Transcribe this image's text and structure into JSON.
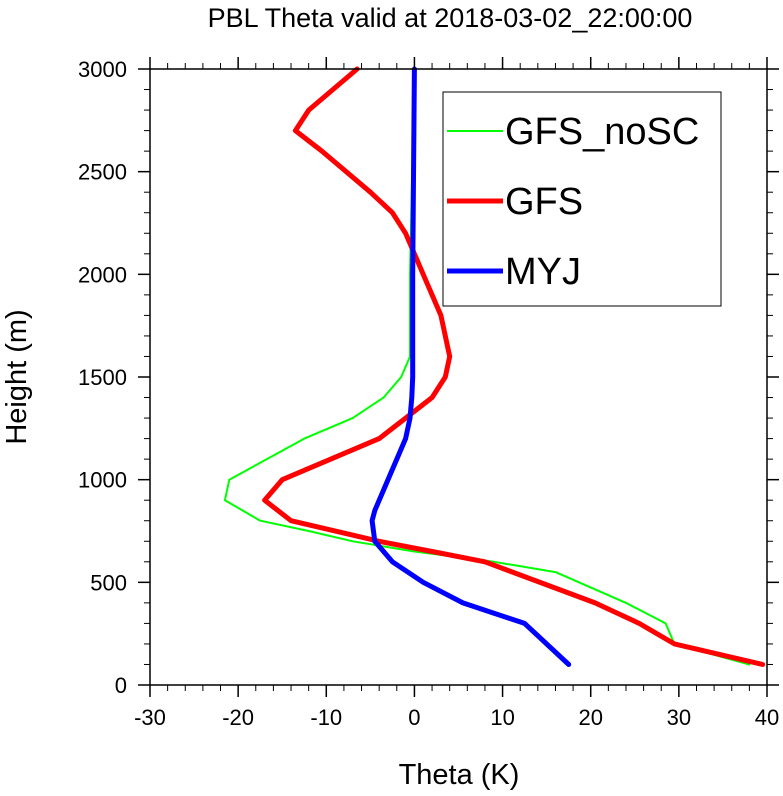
{
  "chart_data": {
    "type": "line",
    "title": "PBL Theta valid at 2018-03-02_22:00:00",
    "xlabel": "Theta (K)",
    "ylabel": "Height (m)",
    "xlim": [
      -30,
      40
    ],
    "ylim": [
      0,
      3000
    ],
    "xticks": [
      -30,
      -20,
      -10,
      0,
      10,
      20,
      30,
      40
    ],
    "yticks": [
      0,
      500,
      1000,
      1500,
      2000,
      2500,
      3000
    ],
    "grid": false,
    "legend_position": "top-right",
    "series": [
      {
        "name": "GFS_noSC",
        "color": "#00ff00",
        "width": 2,
        "points": [
          [
            0,
            3000
          ],
          [
            -0.5,
            2000
          ],
          [
            -0.5,
            1600
          ],
          [
            -1.5,
            1500
          ],
          [
            -3.5,
            1400
          ],
          [
            -7,
            1300
          ],
          [
            -12.5,
            1200
          ],
          [
            -21,
            1000
          ],
          [
            -21.5,
            900
          ],
          [
            -17.5,
            800
          ],
          [
            -12,
            750
          ],
          [
            -7,
            700
          ],
          [
            0,
            650
          ],
          [
            9,
            600
          ],
          [
            16,
            550
          ],
          [
            24,
            400
          ],
          [
            28.5,
            300
          ],
          [
            29.5,
            200
          ],
          [
            38,
            100
          ]
        ]
      },
      {
        "name": "GFS",
        "color": "#ff0000",
        "width": 5,
        "points": [
          [
            -6.5,
            3000
          ],
          [
            -12,
            2800
          ],
          [
            -13.5,
            2700
          ],
          [
            -10.5,
            2600
          ],
          [
            -5,
            2400
          ],
          [
            -2.5,
            2300
          ],
          [
            -1,
            2200
          ],
          [
            0,
            2100
          ],
          [
            1,
            2000
          ],
          [
            3,
            1800
          ],
          [
            4,
            1600
          ],
          [
            3.5,
            1500
          ],
          [
            2,
            1400
          ],
          [
            -1,
            1300
          ],
          [
            -4,
            1200
          ],
          [
            -15,
            1000
          ],
          [
            -17,
            900
          ],
          [
            -14,
            800
          ],
          [
            -4,
            700
          ],
          [
            2,
            650
          ],
          [
            8,
            600
          ],
          [
            20.5,
            400
          ],
          [
            25.5,
            300
          ],
          [
            29.5,
            200
          ],
          [
            39.5,
            100
          ]
        ]
      },
      {
        "name": "MYJ",
        "color": "#0000ff",
        "width": 5,
        "points": [
          [
            0,
            3000
          ],
          [
            -0.2,
            2000
          ],
          [
            -0.2,
            1500
          ],
          [
            -0.3,
            1400
          ],
          [
            -0.5,
            1300
          ],
          [
            -1,
            1200
          ],
          [
            -4.5,
            850
          ],
          [
            -4.8,
            800
          ],
          [
            -4.5,
            700
          ],
          [
            -2.5,
            600
          ],
          [
            1,
            500
          ],
          [
            5.5,
            400
          ],
          [
            12.5,
            300
          ],
          [
            17.5,
            100
          ]
        ]
      }
    ]
  }
}
